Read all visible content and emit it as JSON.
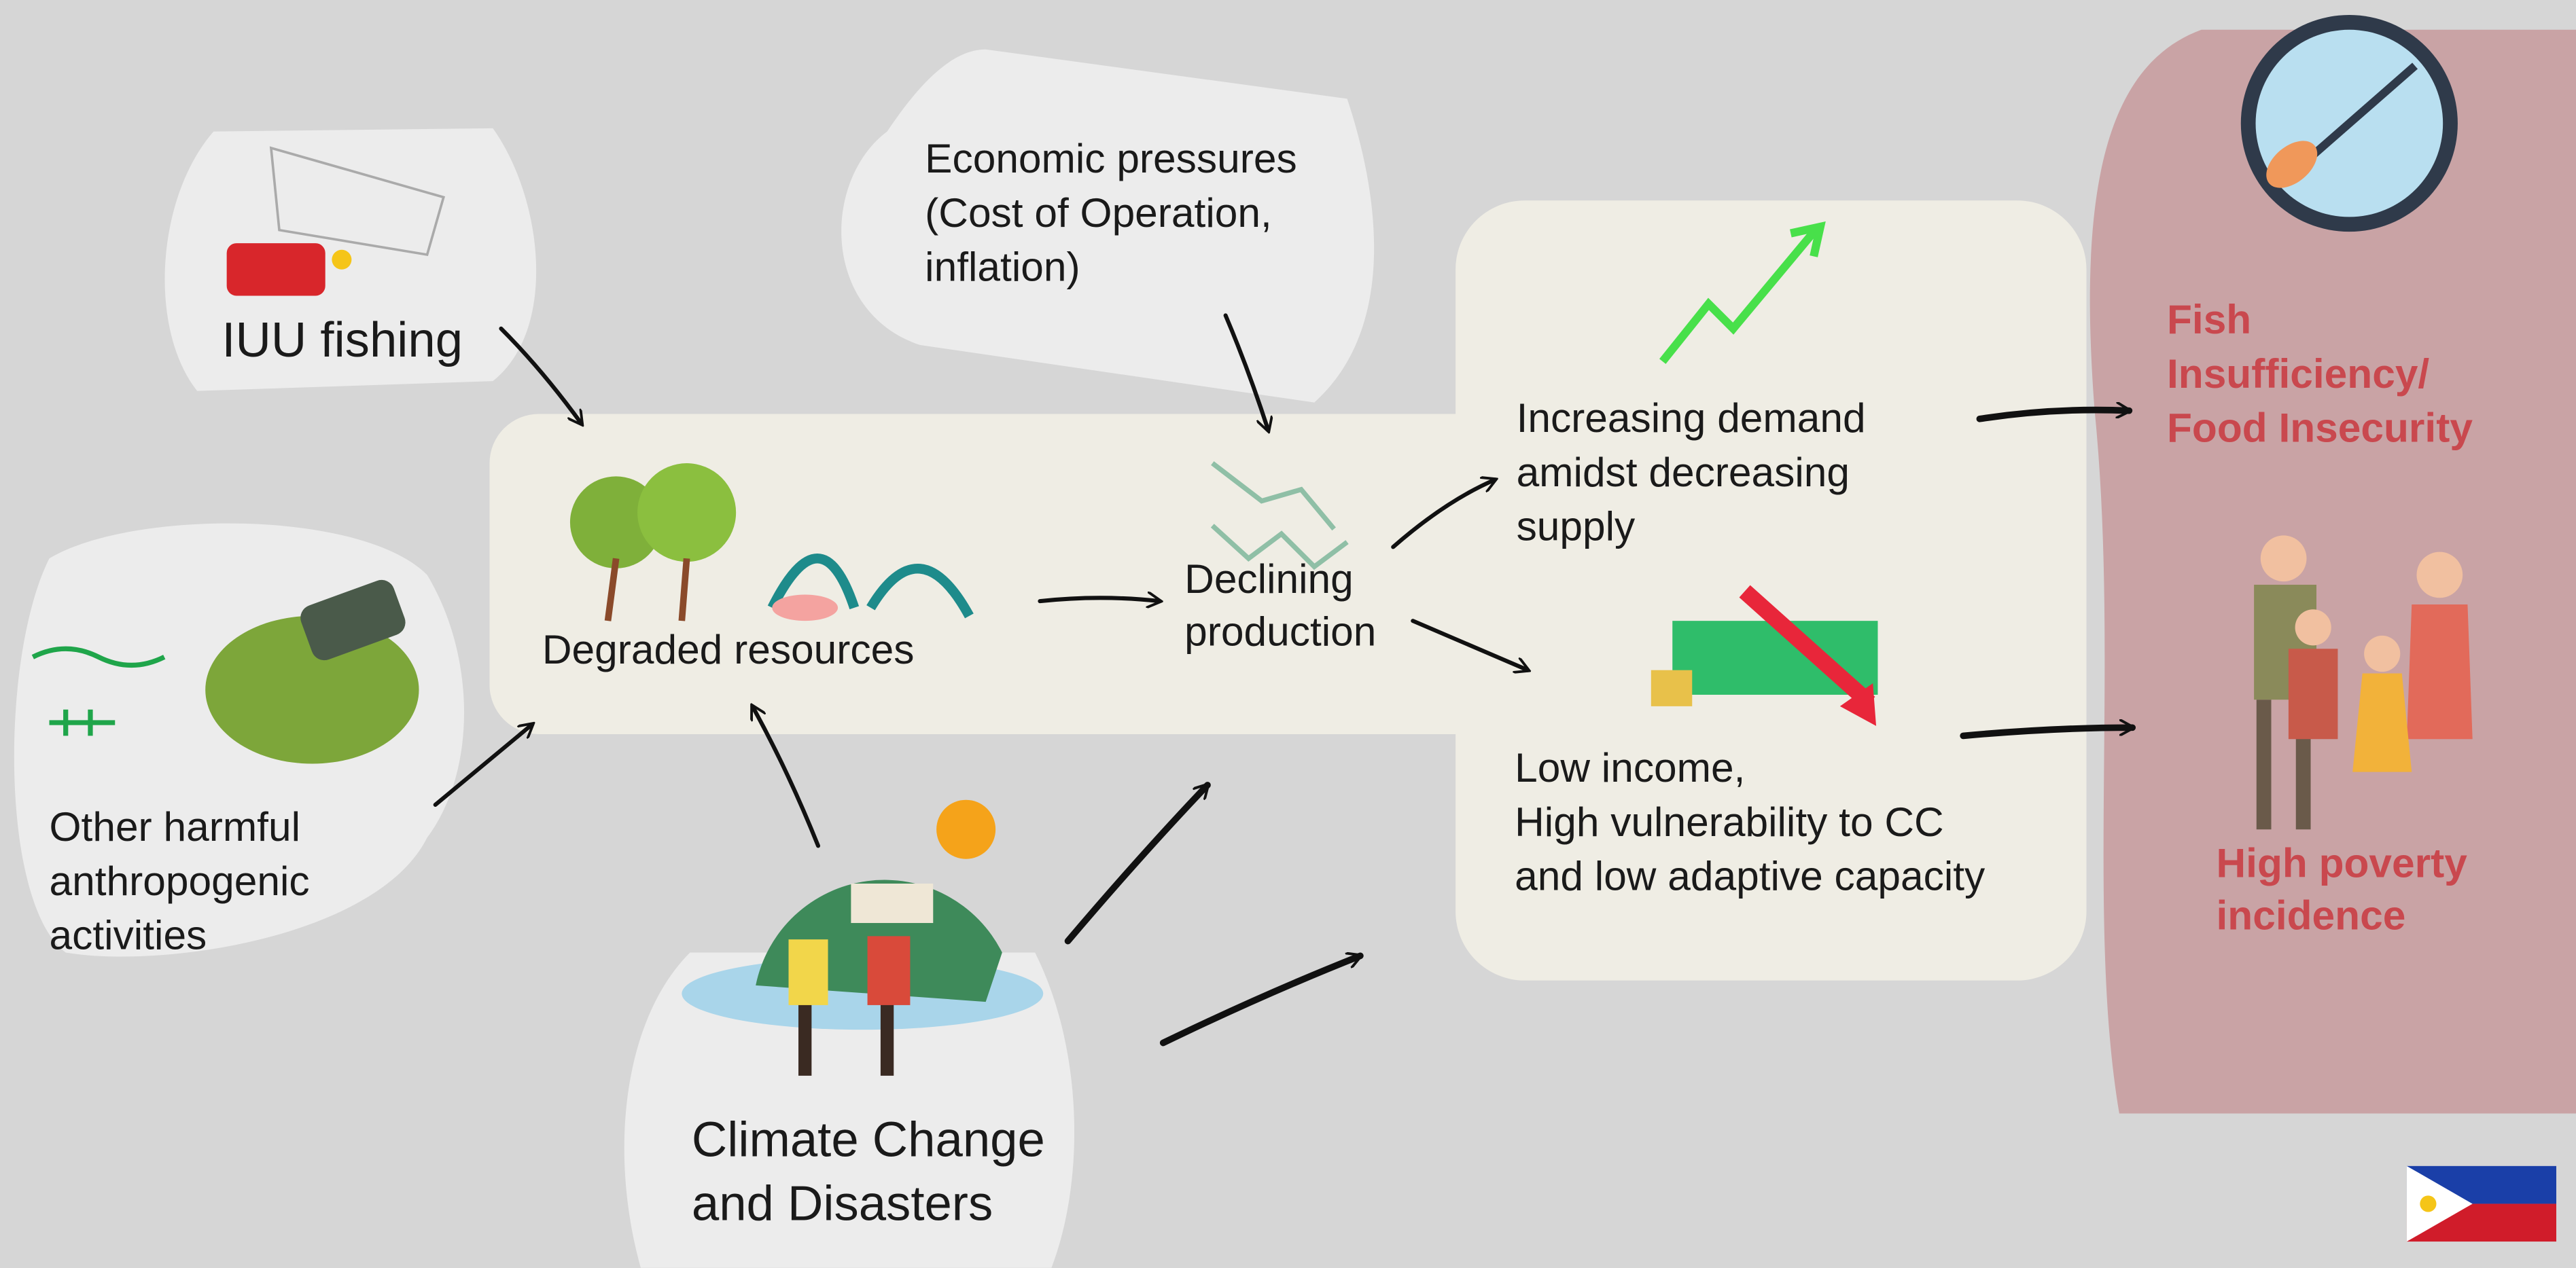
{
  "nodes": [
    {
      "lines": [
        "IUU fishing"
      ]
    },
    {
      "lines": [
        "Economic pressures",
        "(Cost of Operation,",
        "inflation)"
      ]
    },
    {
      "lines": [
        "Other harmful",
        "anthropogenic",
        "activities"
      ]
    },
    {
      "lines": [
        "Degraded resources"
      ]
    },
    {
      "lines": [
        "Declining",
        "production"
      ]
    },
    {
      "lines": [
        "Increasing demand",
        "amidst decreasing",
        "supply"
      ]
    },
    {
      "lines": [
        "Low income,",
        "High vulnerability to CC",
        "and low adaptive capacity"
      ]
    },
    {
      "lines": [
        "Climate Change",
        "and Disasters"
      ]
    },
    {
      "lines": [
        "Fish",
        "Insufficiency/",
        "Food Insecurity"
      ]
    },
    {
      "lines": [
        "High poverty",
        "incidence"
      ]
    }
  ]
}
